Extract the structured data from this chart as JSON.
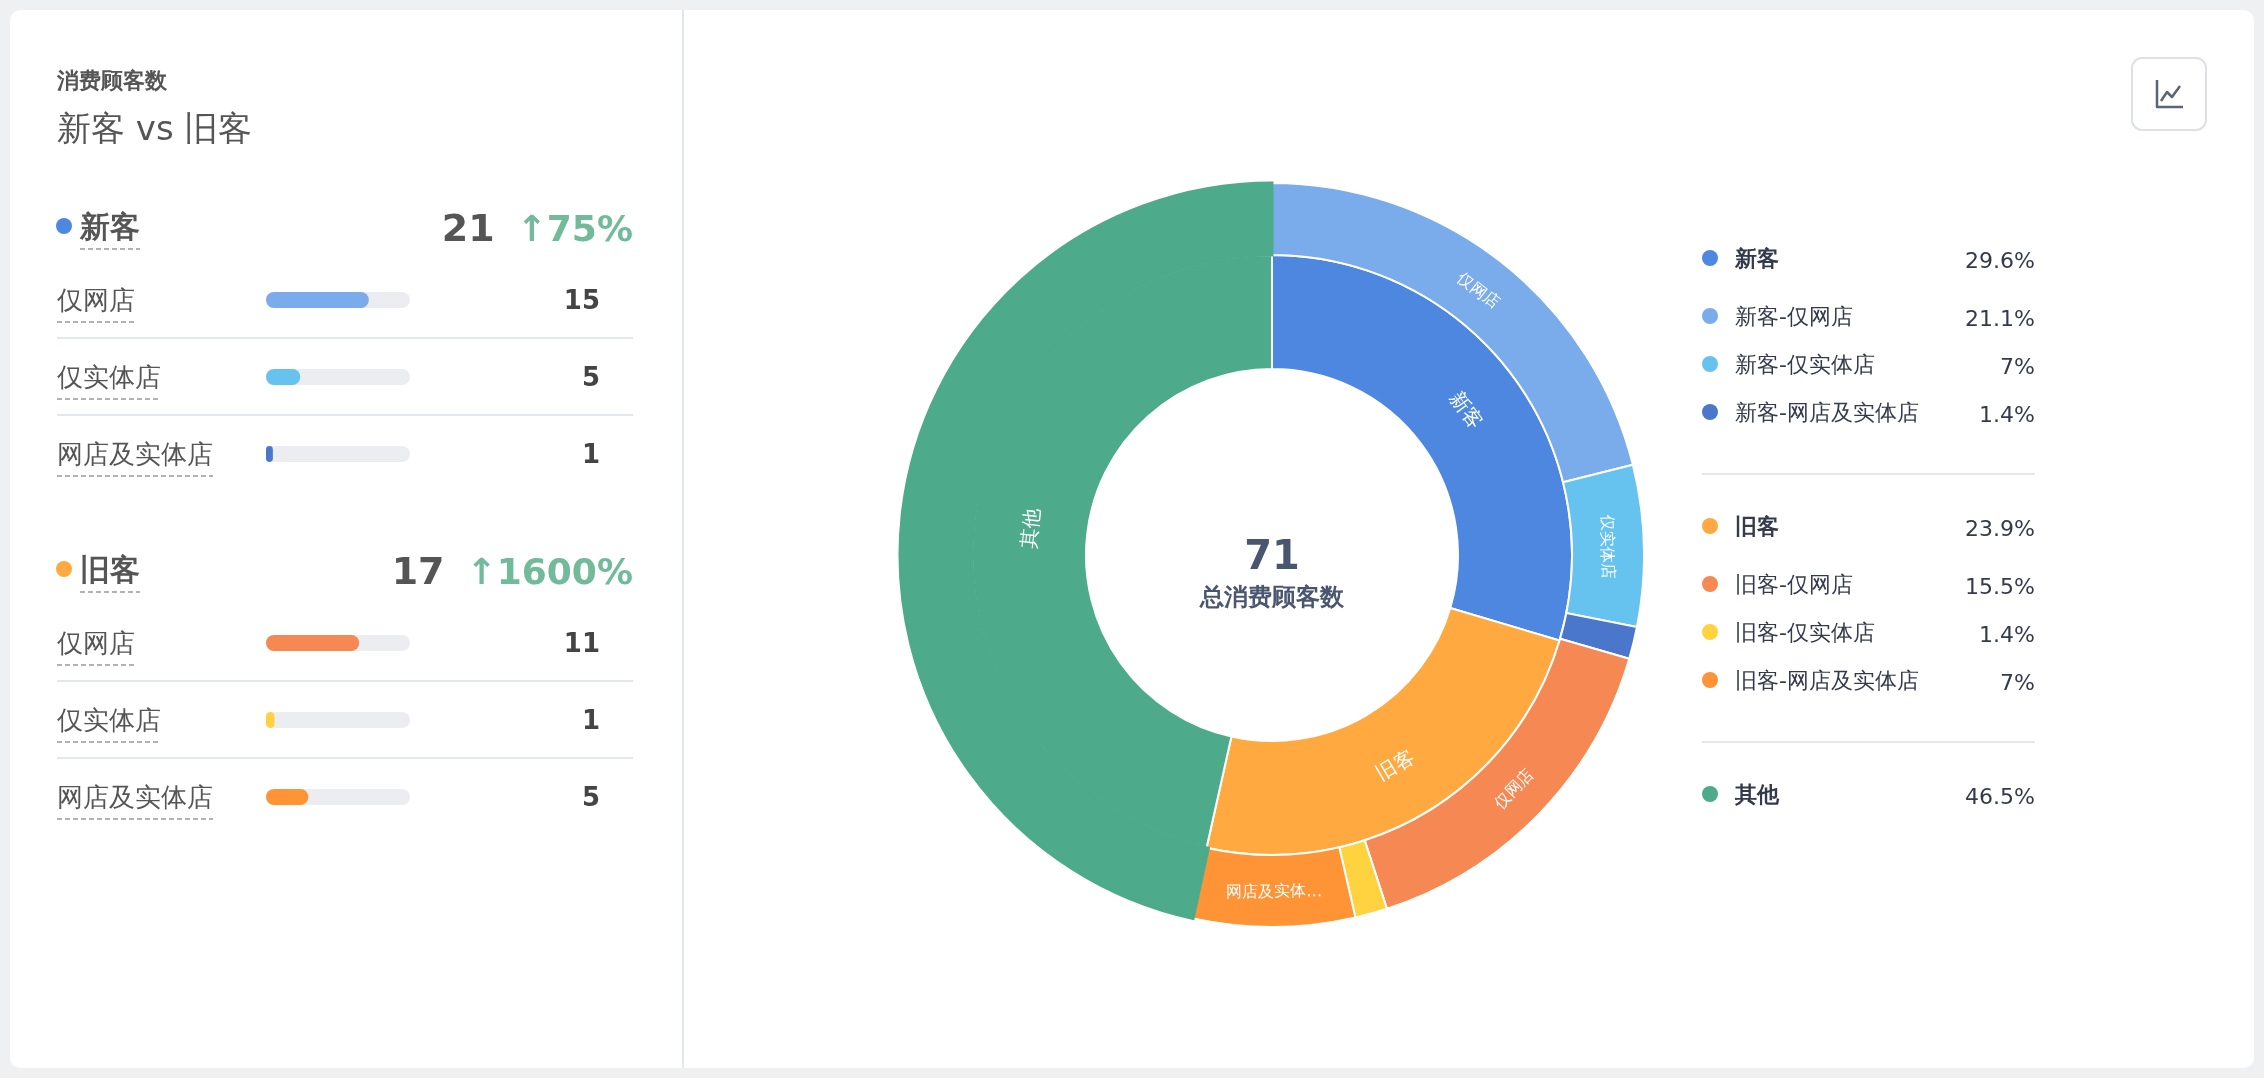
{
  "chart_data": [
    {
      "type": "other",
      "title": "消费顾客数",
      "subtitle": "新客 vs 旧客"
    },
    {
      "type": "bar",
      "orientation": "horizontal",
      "title": "新客",
      "color": "#4e87e0",
      "annotations": [
        "21",
        "↑75%"
      ],
      "categories": [
        "仅网店",
        "仅实体店",
        "网店及实体店"
      ],
      "values": [
        15,
        5,
        1
      ],
      "colors": [
        "#7aabeb",
        "#66c2ee",
        "#4a77cc"
      ],
      "xlim": [
        0,
        21
      ],
      "data_labels": true
    },
    {
      "type": "bar",
      "orientation": "horizontal",
      "title": "旧客",
      "color": "#ffa940",
      "annotations": [
        "17",
        "↑1600%"
      ],
      "categories": [
        "仅网店",
        "仅实体店",
        "网店及实体店"
      ],
      "values": [
        11,
        1,
        5
      ],
      "colors": [
        "#f58853",
        "#ffd23f",
        "#ff9436"
      ],
      "xlim": [
        0,
        17
      ],
      "data_labels": true
    },
    {
      "type": "donut",
      "title": "总消费顾客数",
      "legend": "right",
      "annotations": [
        "71",
        {
          "text": "新客",
          "x": "新客"
        },
        {
          "text": "旧客",
          "x": "旧客"
        },
        {
          "text": "其他",
          "x": "其他"
        }
      ],
      "categories": [
        "新客",
        "旧客",
        "其他"
      ],
      "values": [
        29.6,
        23.9,
        46.5
      ],
      "colors": [
        "#4e87e0",
        "#ffa940",
        "#4daa8a"
      ],
      "value_labels": [
        "29.6%",
        "23.9%",
        "46.5%"
      ]
    },
    {
      "type": "donut",
      "legend": "right",
      "annotations": [
        {
          "text": "仅网店",
          "x": "新客-仅网店"
        },
        {
          "text": "仅实体店",
          "x": "新客-仅实体店"
        },
        {
          "text": "仅网店",
          "x": "旧客-仅网店"
        },
        {
          "text": "网店及实体…",
          "x": "旧客-网店及实体店"
        }
      ],
      "categories": [
        "新客-仅网店",
        "新客-仅实体店",
        "新客-网店及实体店",
        "旧客-仅网店",
        "旧客-仅实体店",
        "旧客-网店及实体店",
        null
      ],
      "values": [
        21.1,
        7,
        1.4,
        15.5,
        1.4,
        7,
        46.6
      ],
      "colors": [
        "#7aabeb",
        "#66c2ee",
        "#4a77cc",
        "#f58853",
        "#ffd23f",
        "#ff9436",
        "#4daa8a"
      ],
      "value_labels": [
        "21.1%",
        "7%",
        "1.4%",
        "15.5%",
        "1.4%",
        "7%",
        null
      ]
    }
  ]
}
